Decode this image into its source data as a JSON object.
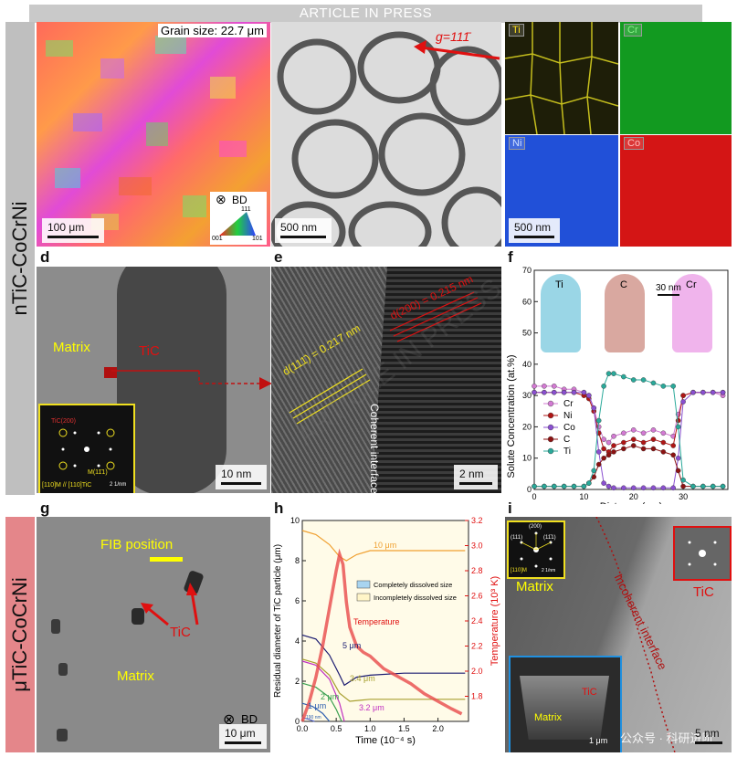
{
  "banner": "ARTICLE IN PRESS",
  "watermark": "ARTICLE IN PRESS",
  "side_labels": {
    "top": "nTiC-CoCrNi",
    "bottom": "μTiC-CoCrNi"
  },
  "colors": {
    "side_top": "#bfbfbf",
    "side_bottom": "#e4868a",
    "annot_yellow": "#ffff00",
    "annot_red": "#e01010"
  },
  "panel_a": {
    "grain_size": "Grain size: 22.7 μm",
    "scale": "100 μm",
    "bd": "BD",
    "ipf": {
      "top": "111",
      "left": "001",
      "right": "101"
    }
  },
  "panel_b": {
    "g_vector": "g=111̄",
    "scale": "500 nm"
  },
  "panel_c": {
    "elements": [
      "Ti",
      "Cr",
      "Ni",
      "Co"
    ],
    "scale": "500 nm"
  },
  "panel_d": {
    "letter": "d",
    "matrix": "Matrix",
    "tic": "TiC",
    "scale": "10 nm",
    "fft_tic": "TiC(200)",
    "fft_m": "M(11̄1)",
    "fft_zone": "[110]M // [110]TiC",
    "fft_scale": "2 1/nm"
  },
  "panel_e": {
    "letter": "e",
    "d1": "d(111̄) = 0.217 nm",
    "d2": "d(200) = 0.215 nm",
    "coherent": "Coherent interface",
    "scale": "2 nm"
  },
  "panel_f": {
    "letter": "f",
    "apt_labels": [
      "Ti",
      "C",
      "Cr"
    ],
    "apt_scale": "30 nm"
  },
  "panel_g": {
    "letter": "g",
    "fib": "FIB position",
    "tic": "TiC",
    "matrix": "Matrix",
    "bd": "BD",
    "scale": "10 μm"
  },
  "panel_h": {
    "letter": "h",
    "legend": [
      "Completely dissolved size",
      "Incompletely dissolved size"
    ],
    "temp_label": "Temperature",
    "annot": [
      "10 μm",
      "5 μm",
      "3.4 μm",
      "2 μm",
      "1 μm",
      "3.2 μm",
      "190 nm"
    ]
  },
  "panel_i": {
    "letter": "i",
    "matrix": "Matrix",
    "tic": "TiC",
    "incoherent": "Incoherent interface",
    "fft_planes": [
      "(200)",
      "(111)",
      "(11̄1)"
    ],
    "fft_zone": "[110]M",
    "fft_scale": "2 1/nm",
    "inset_tic": "TiC",
    "inset_matrix": "Matrix",
    "inset_scale": "1 μm",
    "scale": "5 nm",
    "wechat": "公众号 · 科研进阶"
  },
  "chart_data": [
    {
      "type": "line",
      "title": "",
      "xlabel": "Distance (nm)",
      "ylabel": "Solute Concentration (at.%)",
      "xlim": [
        0,
        39
      ],
      "ylim": [
        0,
        70
      ],
      "xticks": [
        0,
        10,
        20,
        30
      ],
      "yticks": [
        0,
        10,
        20,
        30,
        40,
        50,
        60,
        70
      ],
      "series": [
        {
          "name": "Cr",
          "color": "#d37ad3",
          "x": [
            0,
            2,
            4,
            6,
            8,
            10,
            11,
            12,
            13,
            14,
            15,
            16,
            18,
            20,
            22,
            24,
            26,
            28,
            29,
            30,
            32,
            34,
            36,
            38
          ],
          "y": [
            33,
            33,
            33,
            32,
            32,
            31,
            30,
            26,
            20,
            16,
            15,
            17,
            18,
            19,
            18,
            19,
            18,
            17,
            24,
            30,
            31,
            31,
            31,
            30
          ]
        },
        {
          "name": "Ni",
          "color": "#b01515",
          "x": [
            0,
            2,
            4,
            6,
            8,
            10,
            11,
            12,
            13,
            14,
            15,
            16,
            18,
            20,
            22,
            24,
            26,
            28,
            29,
            30,
            32,
            34,
            36,
            38
          ],
          "y": [
            31,
            31,
            31,
            31,
            31,
            30,
            29,
            25,
            18,
            13,
            12,
            14,
            15,
            16,
            15,
            16,
            15,
            14,
            22,
            30,
            31,
            31,
            31,
            31
          ]
        },
        {
          "name": "Co",
          "color": "#8a4fd0",
          "x": [
            0,
            2,
            4,
            6,
            8,
            10,
            11,
            12,
            13,
            14,
            15,
            16,
            18,
            20,
            22,
            24,
            26,
            28,
            29,
            30,
            32,
            34,
            36,
            38
          ],
          "y": [
            31,
            31,
            31,
            31,
            31,
            31,
            30,
            26,
            12,
            2,
            1,
            0.5,
            0.5,
            0.5,
            0.5,
            0.5,
            0.5,
            0.5,
            10,
            28,
            31,
            31,
            31,
            31
          ]
        },
        {
          "name": "C",
          "color": "#8c1212",
          "x": [
            0,
            2,
            4,
            6,
            8,
            10,
            11,
            12,
            13,
            14,
            15,
            16,
            18,
            20,
            22,
            24,
            26,
            28,
            29,
            30,
            32,
            34,
            36,
            38
          ],
          "y": [
            1,
            1,
            1,
            1,
            1,
            1,
            2,
            4,
            8,
            10,
            11,
            12,
            13,
            14,
            13,
            13,
            12,
            11,
            6,
            1,
            1,
            1,
            1,
            1
          ]
        },
        {
          "name": "Ti",
          "color": "#2aa99a",
          "x": [
            0,
            2,
            4,
            6,
            8,
            10,
            11,
            12,
            13,
            14,
            15,
            16,
            18,
            20,
            22,
            24,
            26,
            28,
            29,
            30,
            32,
            34,
            36,
            38
          ],
          "y": [
            1,
            1,
            1,
            1,
            1,
            1,
            2,
            6,
            22,
            33,
            37,
            37,
            36,
            35,
            35,
            34,
            33,
            33,
            20,
            3,
            1,
            1,
            1,
            1
          ]
        }
      ]
    },
    {
      "type": "line",
      "title": "",
      "xlabel": "Time (10⁻⁴ s)",
      "ylabel": "Residual diameter of TiC particle (μm)",
      "y2label": "Temperature (10³ K)",
      "xlim": [
        0,
        2.45
      ],
      "ylim": [
        0,
        10
      ],
      "y2lim": [
        1.6,
        3.2
      ],
      "xticks": [
        0.0,
        0.5,
        1.0,
        1.5,
        2.0
      ],
      "yticks": [
        0,
        2,
        4,
        6,
        8,
        10
      ],
      "y2ticks": [
        1.8,
        2.0,
        2.2,
        2.4,
        2.6,
        2.8,
        3.0,
        3.2
      ],
      "series": [
        {
          "name": "10 μm",
          "color": "#f0a030",
          "x": [
            0,
            0.2,
            0.4,
            0.55,
            0.65,
            0.8,
            1.0,
            1.5,
            2.0,
            2.4
          ],
          "y": [
            9.5,
            9.3,
            8.8,
            8.2,
            8.0,
            8.3,
            8.5,
            8.5,
            8.5,
            8.5
          ]
        },
        {
          "name": "5 μm",
          "color": "#1a1a70",
          "x": [
            0,
            0.2,
            0.4,
            0.55,
            0.62,
            0.8,
            1.0,
            1.5,
            2.0,
            2.4
          ],
          "y": [
            4.3,
            4.1,
            3.3,
            2.3,
            1.8,
            2.2,
            2.3,
            2.4,
            2.4,
            2.4
          ]
        },
        {
          "name": "3.4 μm",
          "color": "#a8a030",
          "x": [
            0,
            0.2,
            0.4,
            0.55,
            0.7,
            0.85,
            1.0,
            1.5,
            2.0,
            2.4
          ],
          "y": [
            3.1,
            2.9,
            2.3,
            1.4,
            1.0,
            1.05,
            1.1,
            1.1,
            1.1,
            1.1
          ]
        },
        {
          "name": "2 μm",
          "color": "#3aa050",
          "x": [
            0,
            0.2,
            0.4,
            0.5,
            0.58
          ],
          "y": [
            1.9,
            1.7,
            1.2,
            0.6,
            0
          ]
        },
        {
          "name": "1 μm",
          "color": "#2f5fb0",
          "x": [
            0,
            0.15,
            0.3,
            0.4
          ],
          "y": [
            0.9,
            0.75,
            0.4,
            0
          ]
        },
        {
          "name": "3.2 μm",
          "color": "#c030c0",
          "x": [
            0,
            0.2,
            0.4,
            0.55,
            0.62
          ],
          "y": [
            3.0,
            2.8,
            2.1,
            0.9,
            0
          ]
        },
        {
          "name": "190 nm",
          "color": "#5a6ad0",
          "x": [
            0,
            0.1,
            0.18
          ],
          "y": [
            0.19,
            0.1,
            0
          ]
        },
        {
          "name": "Temperature",
          "color": "#e84a4a",
          "axis": "y2",
          "x": [
            0,
            0.1,
            0.2,
            0.3,
            0.4,
            0.5,
            0.55,
            0.6,
            0.65,
            0.7,
            0.8,
            0.9,
            1.0,
            1.2,
            1.4,
            1.6,
            1.8,
            2.0,
            2.2,
            2.35
          ],
          "y": [
            1.6,
            1.75,
            1.95,
            2.2,
            2.5,
            2.8,
            2.93,
            2.85,
            2.55,
            2.35,
            2.2,
            2.15,
            2.12,
            2.02,
            1.96,
            1.9,
            1.82,
            1.76,
            1.7,
            1.66
          ]
        }
      ]
    }
  ]
}
